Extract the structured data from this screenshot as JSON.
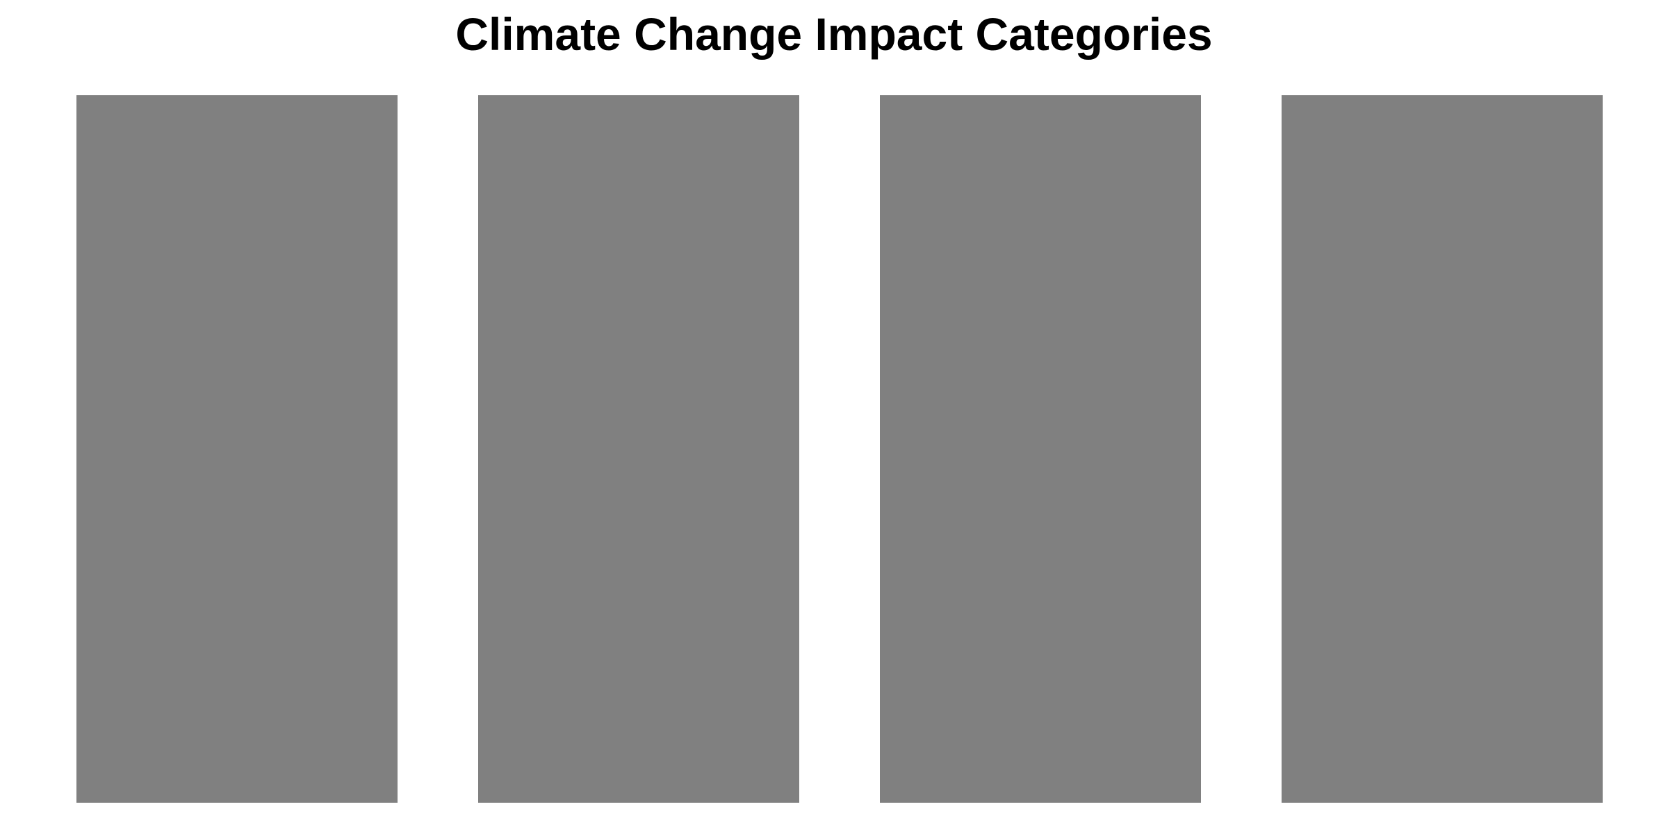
{
  "chart_data": {
    "type": "bar",
    "title": "Climate Change Impact Categories",
    "categories": [
      "",
      "",
      "",
      ""
    ],
    "values": [
      1,
      1,
      1,
      1
    ],
    "ylim": [
      0,
      1
    ],
    "bar_color": "#808080",
    "background": "#ffffff",
    "grid": false,
    "legend": "none"
  }
}
